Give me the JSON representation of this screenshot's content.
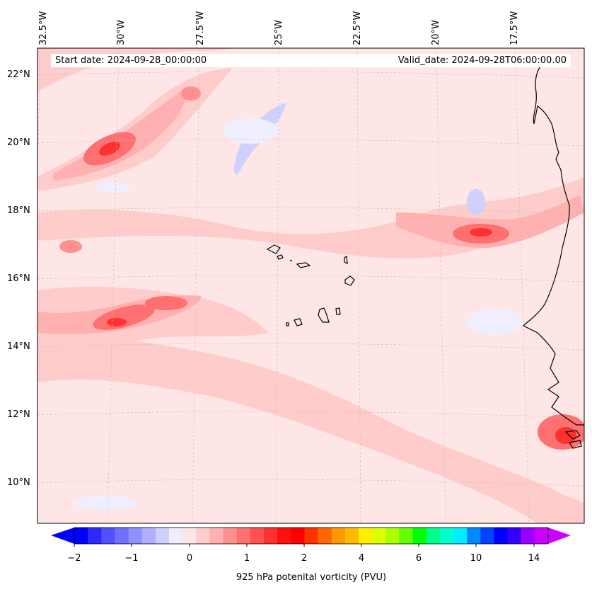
{
  "header": {
    "start_date": "Start date: 2024-09-28_00:00:00",
    "valid_date": "Valid_date: 2024-09-28T06:00:00.00"
  },
  "longitude_labels": [
    "32.5°W",
    "30°W",
    "27.5°W",
    "25°W",
    "22.5°W",
    "20°W",
    "17.5°W"
  ],
  "latitude_labels": [
    "22°N",
    "20°N",
    "18°N",
    "16°N",
    "14°N",
    "12°N",
    "10°N"
  ],
  "colorbar": {
    "title": "925 hPa potenital vorticity (PVU)",
    "tick_labels": [
      "−2",
      "−1",
      "0",
      "1",
      "2",
      "4",
      "6",
      "10",
      "14"
    ],
    "colors": [
      "#0000ff",
      "#2a2aff",
      "#5050ff",
      "#7070ff",
      "#9090ff",
      "#b0b0ff",
      "#d0d0ff",
      "#eeeeff",
      "#ffe6e6",
      "#ffcccc",
      "#ffb0b0",
      "#ff9090",
      "#ff7070",
      "#ff5050",
      "#ff3030",
      "#ff1010",
      "#ff0000",
      "#ff3300",
      "#ff6600",
      "#ff9900",
      "#ffbb00",
      "#ffee00",
      "#ddff00",
      "#aaff00",
      "#66ff00",
      "#00ff00",
      "#00ff88",
      "#00ffcc",
      "#00eeff",
      "#0088ff",
      "#0044ff",
      "#0000ff",
      "#3300ff",
      "#9900ff",
      "#cc00ff"
    ]
  }
}
